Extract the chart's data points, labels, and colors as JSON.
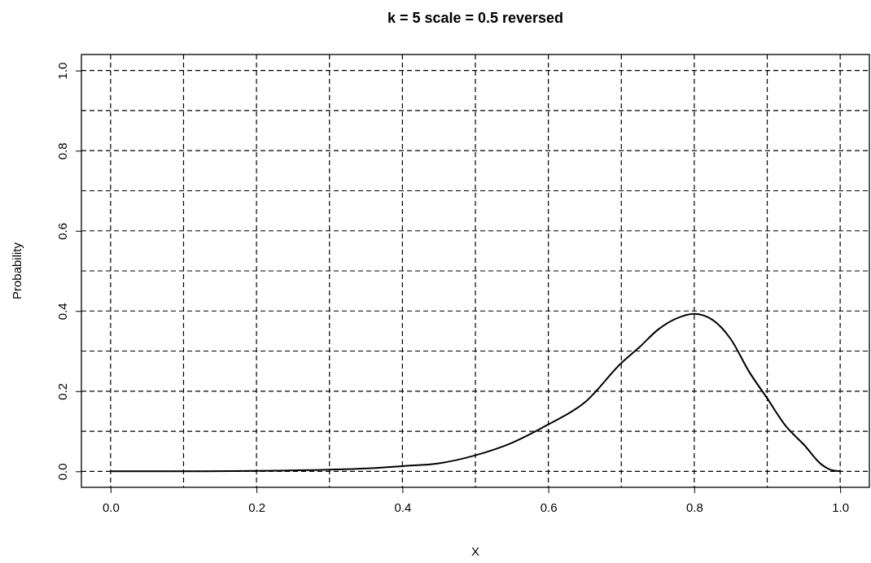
{
  "chart_data": {
    "type": "line",
    "title": "k = 5 scale = 0.5 reversed",
    "xlabel": "X",
    "ylabel": "Probability",
    "x": [
      0,
      0.1,
      0.2,
      0.3,
      0.35,
      0.4,
      0.45,
      0.5,
      0.55,
      0.6,
      0.65,
      0.7,
      0.725,
      0.75,
      0.775,
      0.8,
      0.825,
      0.85,
      0.875,
      0.9,
      0.925,
      0.95,
      0.975,
      0.99,
      1
    ],
    "series": [
      {
        "color": "#000000",
        "values": [
          0,
          0,
          0.001,
          0.004,
          0.007,
          0.013,
          0.02,
          0.04,
          0.071,
          0.117,
          0.172,
          0.27,
          0.31,
          0.353,
          0.381,
          0.393,
          0.378,
          0.33,
          0.249,
          0.182,
          0.114,
          0.067,
          0.016,
          0.002,
          0
        ]
      }
    ],
    "xlim": [
      -0.04,
      1.04
    ],
    "ylim": [
      -0.04,
      1.04
    ],
    "xticks": [
      {
        "value": 0,
        "label": "0.0"
      },
      {
        "value": 0.1,
        "label": null
      },
      {
        "value": 0.2,
        "label": "0.2"
      },
      {
        "value": 0.3,
        "label": null
      },
      {
        "value": 0.4,
        "label": "0.4"
      },
      {
        "value": 0.5,
        "label": null
      },
      {
        "value": 0.6,
        "label": "0.6"
      },
      {
        "value": 0.7,
        "label": null
      },
      {
        "value": 0.8,
        "label": "0.8"
      },
      {
        "value": 0.9,
        "label": null
      },
      {
        "value": 1,
        "label": "1.0"
      }
    ],
    "yticks": [
      {
        "value": 0,
        "label": "0.0"
      },
      {
        "value": 0.1,
        "label": null
      },
      {
        "value": 0.2,
        "label": "0.2"
      },
      {
        "value": 0.3,
        "label": null
      },
      {
        "value": 0.4,
        "label": "0.4"
      },
      {
        "value": 0.5,
        "label": null
      },
      {
        "value": 0.6,
        "label": "0.6"
      },
      {
        "value": 0.7,
        "label": null
      },
      {
        "value": 0.8,
        "label": "0.8"
      },
      {
        "value": 0.9,
        "label": null
      },
      {
        "value": 1,
        "label": "1.0"
      }
    ],
    "grid": true,
    "marker": "none",
    "line_style": "solid"
  }
}
